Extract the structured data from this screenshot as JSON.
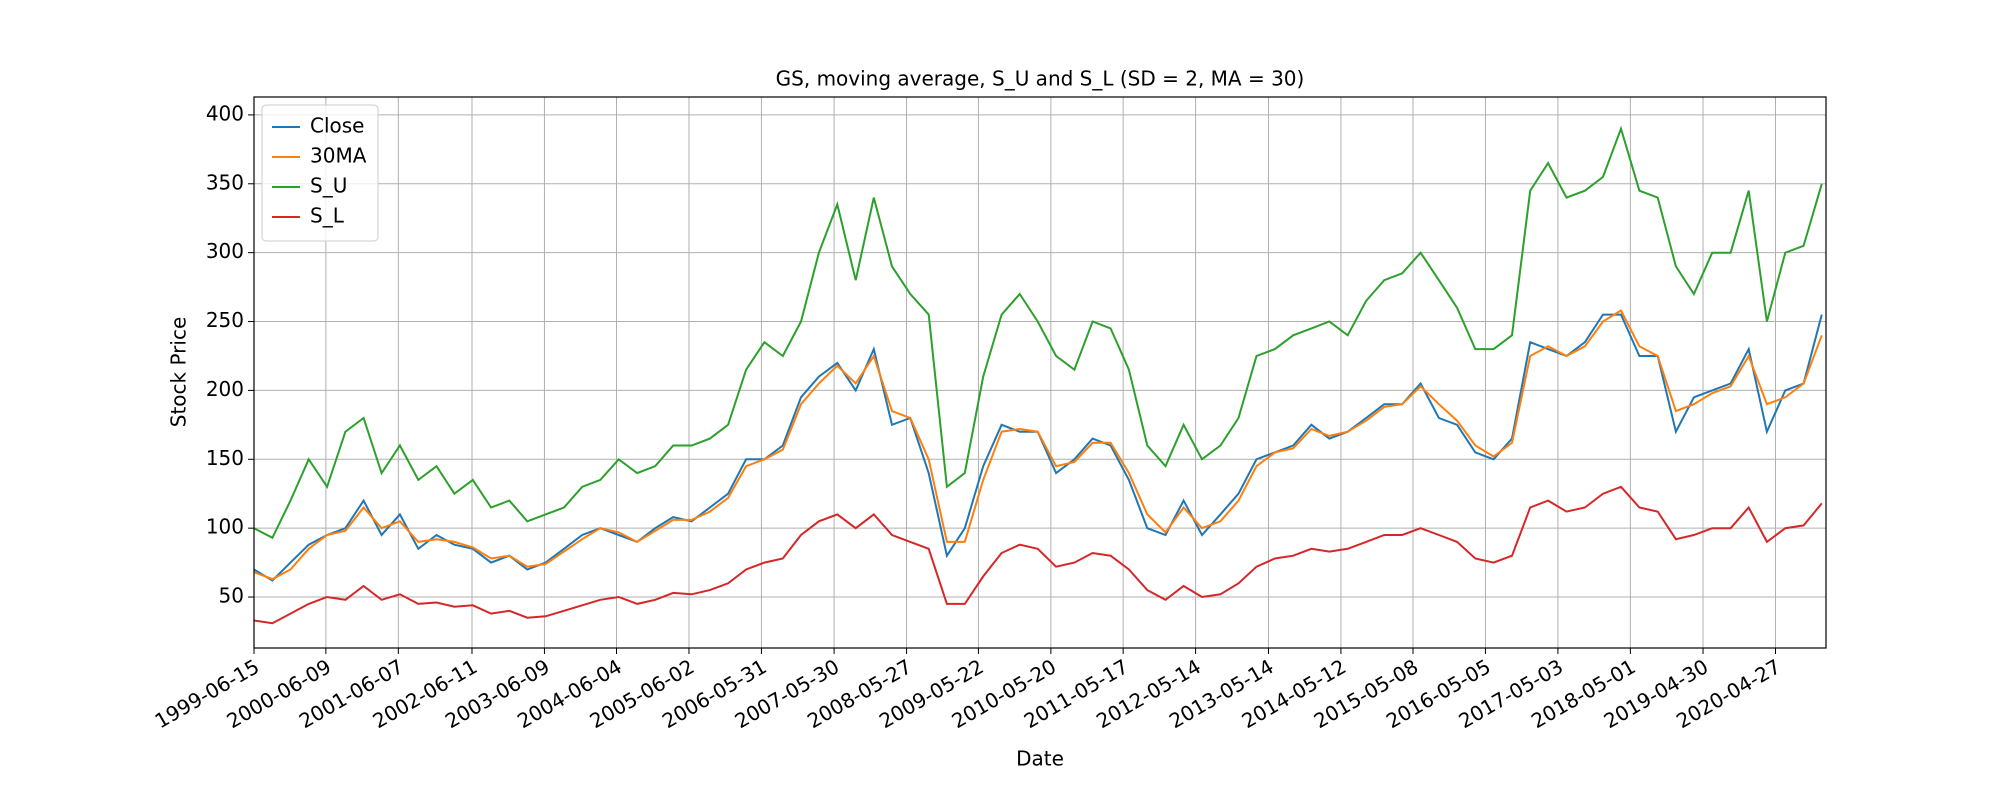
{
  "chart_data": {
    "type": "line",
    "title": "GS, moving average, S_U and S_L (SD = 2, MA = 30)",
    "x_label": "Date",
    "y_label": "Stock Price",
    "x": [
      "1999-06-15",
      "1999-09-15",
      "1999-12-15",
      "2000-03-15",
      "2000-06-15",
      "2000-09-15",
      "2000-12-15",
      "2001-03-15",
      "2001-06-15",
      "2001-09-15",
      "2001-12-15",
      "2002-03-15",
      "2002-06-15",
      "2002-09-15",
      "2002-12-15",
      "2003-03-15",
      "2003-06-15",
      "2003-09-15",
      "2003-12-15",
      "2004-03-15",
      "2004-06-15",
      "2004-09-15",
      "2004-12-15",
      "2005-03-15",
      "2005-06-15",
      "2005-09-15",
      "2005-12-15",
      "2006-03-15",
      "2006-06-15",
      "2006-09-15",
      "2006-12-15",
      "2007-03-15",
      "2007-06-15",
      "2007-09-15",
      "2007-12-15",
      "2008-03-15",
      "2008-06-15",
      "2008-09-15",
      "2008-12-15",
      "2009-03-15",
      "2009-06-15",
      "2009-09-15",
      "2009-12-15",
      "2010-03-15",
      "2010-06-15",
      "2010-09-15",
      "2010-12-15",
      "2011-03-15",
      "2011-06-15",
      "2011-09-15",
      "2011-12-15",
      "2012-03-15",
      "2012-06-15",
      "2012-09-15",
      "2012-12-15",
      "2013-03-15",
      "2013-06-15",
      "2013-09-15",
      "2013-12-15",
      "2014-03-15",
      "2014-06-15",
      "2014-09-15",
      "2014-12-15",
      "2015-03-15",
      "2015-06-15",
      "2015-09-15",
      "2015-12-15",
      "2016-03-15",
      "2016-06-15",
      "2016-09-15",
      "2016-12-15",
      "2017-03-15",
      "2017-06-15",
      "2017-09-15",
      "2017-12-15",
      "2018-03-15",
      "2018-06-15",
      "2018-09-15",
      "2018-12-15",
      "2019-03-15",
      "2019-06-15",
      "2019-09-15",
      "2019-12-15",
      "2020-03-15",
      "2020-06-15",
      "2020-09-15",
      "2020-12-15"
    ],
    "series": [
      {
        "name": "Close",
        "color": "#1f77b4",
        "values": [
          70,
          62,
          75,
          88,
          95,
          100,
          120,
          95,
          110,
          85,
          95,
          88,
          85,
          75,
          80,
          70,
          75,
          85,
          95,
          100,
          95,
          90,
          100,
          108,
          105,
          115,
          125,
          150,
          150,
          160,
          195,
          210,
          220,
          200,
          230,
          175,
          180,
          140,
          80,
          100,
          145,
          175,
          170,
          170,
          140,
          150,
          165,
          160,
          135,
          100,
          95,
          120,
          95,
          110,
          125,
          150,
          155,
          160,
          175,
          165,
          170,
          180,
          190,
          190,
          205,
          180,
          175,
          155,
          150,
          165,
          235,
          230,
          225,
          235,
          255,
          255,
          225,
          225,
          170,
          195,
          200,
          205,
          230,
          170,
          200,
          205,
          255
        ]
      },
      {
        "name": "30MA",
        "color": "#ff7f0e",
        "values": [
          68,
          63,
          70,
          85,
          95,
          98,
          115,
          100,
          105,
          90,
          92,
          90,
          86,
          78,
          80,
          72,
          74,
          83,
          92,
          100,
          97,
          90,
          98,
          106,
          106,
          112,
          122,
          145,
          150,
          157,
          190,
          205,
          218,
          205,
          225,
          185,
          180,
          150,
          90,
          90,
          135,
          170,
          172,
          170,
          145,
          148,
          162,
          162,
          140,
          110,
          97,
          115,
          100,
          105,
          120,
          145,
          155,
          158,
          172,
          167,
          170,
          178,
          188,
          190,
          203,
          190,
          178,
          160,
          152,
          162,
          225,
          232,
          225,
          232,
          250,
          258,
          232,
          225,
          185,
          190,
          198,
          203,
          225,
          190,
          195,
          205,
          240
        ]
      },
      {
        "name": "S_U",
        "color": "#2ca02c",
        "values": [
          100,
          93,
          120,
          150,
          130,
          170,
          180,
          140,
          160,
          135,
          145,
          125,
          135,
          115,
          120,
          105,
          110,
          115,
          130,
          135,
          150,
          140,
          145,
          160,
          160,
          165,
          175,
          215,
          235,
          225,
          250,
          300,
          335,
          280,
          340,
          290,
          270,
          255,
          130,
          140,
          210,
          255,
          270,
          250,
          225,
          215,
          250,
          245,
          215,
          160,
          145,
          175,
          150,
          160,
          180,
          225,
          230,
          240,
          245,
          250,
          240,
          265,
          280,
          285,
          300,
          280,
          260,
          230,
          230,
          240,
          345,
          365,
          340,
          345,
          355,
          390,
          345,
          340,
          290,
          270,
          300,
          300,
          345,
          250,
          300,
          305,
          350
        ]
      },
      {
        "name": "S_L",
        "color": "#d62728",
        "values": [
          33,
          31,
          38,
          45,
          50,
          48,
          58,
          48,
          52,
          45,
          46,
          43,
          44,
          38,
          40,
          35,
          36,
          40,
          44,
          48,
          50,
          45,
          48,
          53,
          52,
          55,
          60,
          70,
          75,
          78,
          95,
          105,
          110,
          100,
          110,
          95,
          90,
          85,
          45,
          45,
          65,
          82,
          88,
          85,
          72,
          75,
          82,
          80,
          70,
          55,
          48,
          58,
          50,
          52,
          60,
          72,
          78,
          80,
          85,
          83,
          85,
          90,
          95,
          95,
          100,
          95,
          90,
          78,
          75,
          80,
          115,
          120,
          112,
          115,
          125,
          130,
          115,
          112,
          92,
          95,
          100,
          100,
          115,
          90,
          100,
          102,
          118
        ]
      }
    ],
    "xlim": [
      "1999-06-15",
      "2021-01-05"
    ],
    "xticks": [
      "1999-06-15",
      "2000-06-09",
      "2001-06-07",
      "2002-06-11",
      "2003-06-09",
      "2004-06-04",
      "2005-06-02",
      "2006-05-31",
      "2007-05-30",
      "2008-05-27",
      "2009-05-22",
      "2010-05-20",
      "2011-05-17",
      "2012-05-14",
      "2013-05-14",
      "2014-05-12",
      "2015-05-08",
      "2016-05-05",
      "2017-05-03",
      "2018-05-01",
      "2019-04-30",
      "2020-04-27"
    ],
    "ylim": [
      13,
      413
    ],
    "yticks": [
      50,
      100,
      150,
      200,
      250,
      300,
      350,
      400
    ],
    "grid": true,
    "legend": "upper left"
  }
}
